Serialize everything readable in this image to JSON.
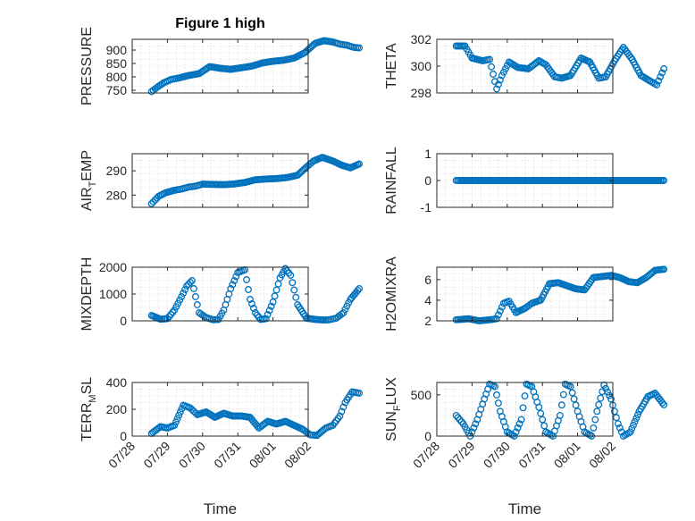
{
  "figure": {
    "title": "Figure 1 high"
  },
  "chart_data": [
    {
      "type": "scatter",
      "title": "Figure 1 high",
      "ylabel": "PRESSURE",
      "ylim": [
        740,
        940
      ],
      "yticks": [
        750,
        800,
        850,
        900
      ],
      "ytick_labels": [
        "750",
        "800",
        "850",
        "900"
      ],
      "x": [
        7.55,
        7.6,
        7.75,
        7.9,
        8.1,
        8.3,
        8.6,
        8.9,
        9.2,
        9.5,
        9.8,
        10.1,
        10.4,
        10.7,
        11.0,
        11.3,
        11.6,
        11.9,
        12.2,
        12.45,
        12.7,
        12.9,
        13.1,
        13.3,
        13.45
      ],
      "y": [
        745,
        750,
        765,
        778,
        790,
        795,
        805,
        812,
        838,
        832,
        828,
        834,
        840,
        852,
        858,
        862,
        870,
        890,
        925,
        935,
        930,
        922,
        918,
        910,
        908
      ]
    },
    {
      "type": "scatter",
      "ylabel": "THETA",
      "ylim": [
        298,
        302
      ],
      "yticks": [
        298,
        300,
        302
      ],
      "ytick_labels": [
        "298",
        "300",
        "302"
      ],
      "x": [
        7.55,
        7.8,
        8.0,
        8.3,
        8.5,
        8.7,
        8.85,
        9.05,
        9.3,
        9.6,
        9.9,
        10.1,
        10.35,
        10.55,
        10.8,
        11.1,
        11.35,
        11.6,
        11.8,
        12.05,
        12.3,
        12.55,
        12.8,
        13.05,
        13.25,
        13.45
      ],
      "y": [
        301.5,
        301.5,
        300.6,
        300.4,
        300.5,
        298.3,
        299.3,
        300.3,
        299.9,
        299.8,
        300.4,
        300.1,
        299.2,
        299.1,
        299.3,
        300.6,
        300.3,
        299.1,
        299.2,
        300.4,
        301.4,
        300.5,
        299.3,
        298.9,
        298.6,
        299.8
      ]
    },
    {
      "type": "scatter",
      "ylabel": "AIR_TEMP",
      "ylim": [
        275,
        297
      ],
      "yticks": [
        280,
        290
      ],
      "ytick_labels": [
        "280",
        "290"
      ],
      "x": [
        7.55,
        7.75,
        7.95,
        8.2,
        8.4,
        8.6,
        8.8,
        9.0,
        9.3,
        9.6,
        9.9,
        10.2,
        10.5,
        10.8,
        11.1,
        11.4,
        11.7,
        11.95,
        12.15,
        12.4,
        12.7,
        12.95,
        13.2,
        13.45
      ],
      "y": [
        276.5,
        279.5,
        281,
        282,
        282.5,
        283.3,
        283.7,
        284.5,
        284.4,
        284.3,
        284.6,
        285.2,
        286.3,
        286.6,
        286.8,
        287.2,
        288.2,
        291.5,
        294,
        295.5,
        294,
        292.3,
        291.2,
        292.8
      ]
    },
    {
      "type": "scatter",
      "ylabel": "RAINFALL",
      "ylim": [
        -1,
        1
      ],
      "yticks": [
        -1,
        0,
        1
      ],
      "ytick_labels": [
        "-1",
        "0",
        "1"
      ],
      "x": [
        7.55,
        8.0,
        8.5,
        9.0,
        9.5,
        10.0,
        10.5,
        11.0,
        11.5,
        12.0,
        12.5,
        13.0,
        13.45
      ],
      "y": [
        0,
        0,
        0,
        0,
        0,
        0,
        0,
        0,
        0,
        0,
        0,
        0,
        0
      ]
    },
    {
      "type": "scatter",
      "ylabel": "MIXDEPTH",
      "ylim": [
        0,
        2000
      ],
      "yticks": [
        0,
        1000,
        2000
      ],
      "ytick_labels": [
        "0",
        "1000",
        "2000"
      ],
      "x": [
        7.55,
        7.8,
        8.0,
        8.2,
        8.4,
        8.55,
        8.7,
        8.9,
        9.1,
        9.3,
        9.45,
        9.6,
        9.8,
        10.0,
        10.2,
        10.35,
        10.5,
        10.65,
        10.8,
        11.0,
        11.2,
        11.35,
        11.5,
        11.7,
        11.95,
        12.2,
        12.45,
        12.6,
        12.8,
        13.0,
        13.2,
        13.45
      ],
      "y": [
        200,
        60,
        80,
        400,
        900,
        1300,
        1500,
        300,
        120,
        40,
        50,
        400,
        1200,
        1800,
        1900,
        800,
        300,
        50,
        80,
        700,
        1600,
        1950,
        1700,
        600,
        100,
        50,
        30,
        40,
        100,
        300,
        800,
        1200
      ]
    },
    {
      "type": "scatter",
      "ylabel": "H2OMIXRA",
      "ylim": [
        2,
        7.2
      ],
      "yticks": [
        2,
        4,
        6
      ],
      "ytick_labels": [
        "2",
        "4",
        "6"
      ],
      "x": [
        7.55,
        7.9,
        8.2,
        8.5,
        8.7,
        8.9,
        9.05,
        9.25,
        9.5,
        9.7,
        9.95,
        10.2,
        10.45,
        10.7,
        10.95,
        11.2,
        11.45,
        11.7,
        11.95,
        12.2,
        12.45,
        12.7,
        12.95,
        13.2,
        13.45
      ],
      "y": [
        2.1,
        2.2,
        2.0,
        2.1,
        2.2,
        3.7,
        3.9,
        2.8,
        3.2,
        3.7,
        4.0,
        5.6,
        5.7,
        5.4,
        5.1,
        5.0,
        6.2,
        6.3,
        6.4,
        6.2,
        5.8,
        5.7,
        6.2,
        6.9,
        7.0
      ]
    },
    {
      "type": "scatter",
      "ylabel": "TERR_MSL",
      "ylim": [
        0,
        400
      ],
      "yticks": [
        0,
        200,
        400
      ],
      "ytick_labels": [
        "0",
        "200",
        "400"
      ],
      "x": [
        7.55,
        7.8,
        8.0,
        8.2,
        8.45,
        8.65,
        8.85,
        9.1,
        9.35,
        9.6,
        9.85,
        10.1,
        10.35,
        10.6,
        10.85,
        11.1,
        11.35,
        11.6,
        11.85,
        12.05,
        12.25,
        12.5,
        12.7,
        12.9,
        13.05,
        13.25,
        13.45
      ],
      "y": [
        20,
        70,
        60,
        80,
        230,
        210,
        160,
        180,
        140,
        170,
        150,
        150,
        140,
        60,
        110,
        90,
        110,
        80,
        50,
        10,
        5,
        60,
        80,
        150,
        250,
        330,
        320
      ]
    },
    {
      "type": "scatter",
      "ylabel": "SUN_FLUX",
      "ylim": [
        0,
        650
      ],
      "yticks": [
        0,
        500
      ],
      "ytick_labels": [
        "0",
        "500"
      ],
      "x": [
        7.55,
        7.75,
        7.95,
        8.15,
        8.35,
        8.5,
        8.65,
        8.8,
        9.0,
        9.2,
        9.4,
        9.55,
        9.7,
        9.9,
        10.1,
        10.3,
        10.5,
        10.65,
        10.8,
        11.0,
        11.2,
        11.4,
        11.55,
        11.75,
        11.95,
        12.15,
        12.3,
        12.5,
        12.75,
        13.0,
        13.2,
        13.45
      ],
      "y": [
        250,
        150,
        0,
        200,
        450,
        630,
        600,
        300,
        50,
        0,
        200,
        630,
        600,
        350,
        50,
        0,
        250,
        630,
        600,
        300,
        50,
        0,
        300,
        620,
        450,
        150,
        0,
        50,
        300,
        480,
        520,
        380
      ]
    }
  ],
  "x_axis": {
    "label": "Time",
    "ticks": [
      7,
      8,
      9,
      10,
      11,
      12
    ],
    "tick_labels": [
      "07/28",
      "07/29",
      "07/30",
      "07/31",
      "08/01",
      "08/02"
    ]
  },
  "colors": {
    "marker": "#0072BD",
    "axis": "#262626",
    "grid": "#d6d6d6"
  }
}
